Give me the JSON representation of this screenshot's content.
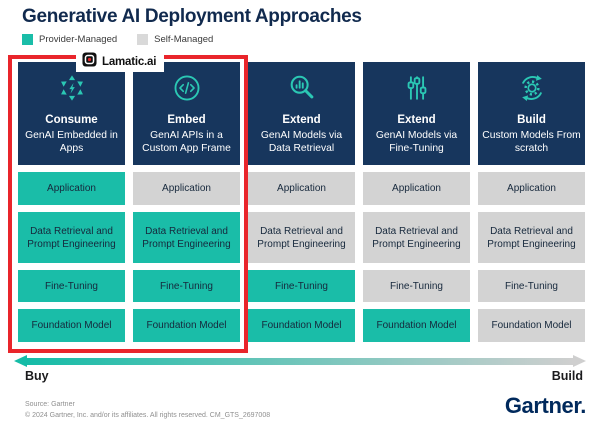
{
  "title": "Generative AI Deployment Approaches",
  "legend": [
    {
      "label": "Provider-Managed",
      "color": "#1ABDA8"
    },
    {
      "label": "Self-Managed",
      "color": "#D9D9D9"
    }
  ],
  "overlay": {
    "brand": "Lamatic.ai"
  },
  "row_labels": [
    "Application",
    "Data Retrieval and Prompt Engineering",
    "Fine-Tuning",
    "Foundation Model"
  ],
  "columns": [
    {
      "icon": "consume-arrows-icon",
      "title": "Consume",
      "subtitle": "GenAI Embedded in Apps",
      "cells": [
        "provider",
        "provider",
        "provider",
        "provider"
      ]
    },
    {
      "icon": "code-embed-icon",
      "title": "Embed",
      "subtitle": "GenAI APIs in a Custom App Frame",
      "cells": [
        "self",
        "provider",
        "provider",
        "provider"
      ]
    },
    {
      "icon": "search-analytics-icon",
      "title": "Extend",
      "subtitle": "GenAI Models via Data Retrieval",
      "cells": [
        "self",
        "self",
        "provider",
        "provider"
      ]
    },
    {
      "icon": "sliders-icon",
      "title": "Extend",
      "subtitle": "GenAI Models via Fine-Tuning",
      "cells": [
        "self",
        "self",
        "self",
        "provider"
      ]
    },
    {
      "icon": "gear-cycle-icon",
      "title": "Build",
      "subtitle": "Custom Models From scratch",
      "cells": [
        "self",
        "self",
        "self",
        "self"
      ]
    }
  ],
  "axis": {
    "left": "Buy",
    "right": "Build"
  },
  "footer": {
    "source": "Source: Gartner",
    "copyright": "© 2024 Gartner, Inc. and/or its affiliates. All rights reserved. CM_GTS_2697008",
    "brand": "Gartner."
  },
  "colors": {
    "provider": "#1ABDA8",
    "self": "#D3D3D3",
    "header": "#17365D",
    "accent_red": "#E9252B",
    "title_navy": "#112A4E",
    "gartner_navy": "#00295C",
    "arrow_start": "#15BCA7",
    "arrow_end": "#CFCFCF",
    "icon_teal": "#2BC8B4"
  }
}
